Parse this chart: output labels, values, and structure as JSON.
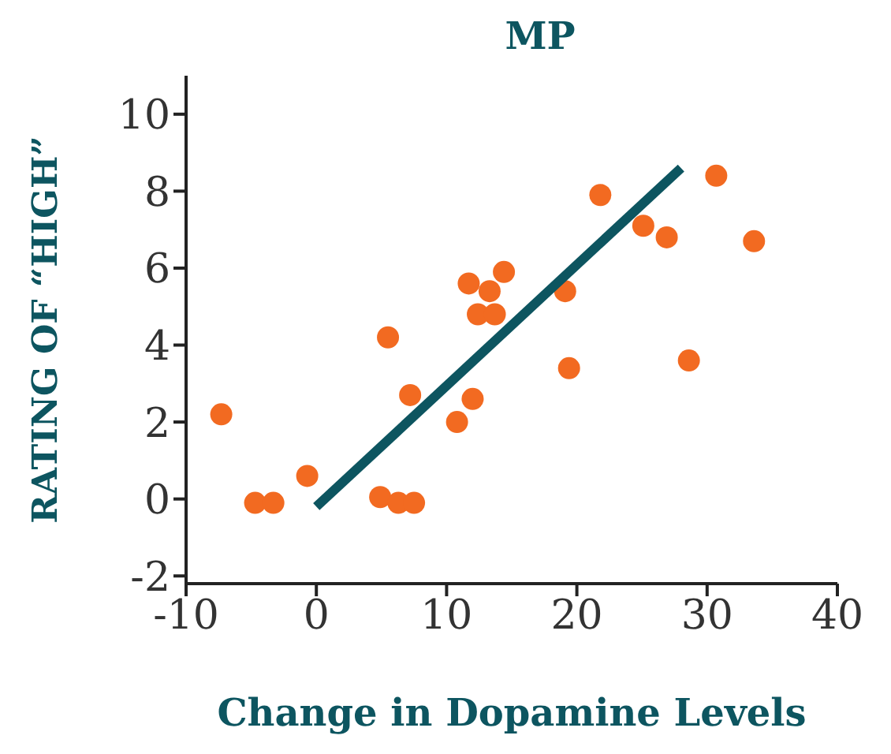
{
  "chart_data": {
    "type": "scatter",
    "title": "MP",
    "xlabel": "Change in Dopamine Levels",
    "ylabel": "RATING OF “HIGH”",
    "xlim": [
      -10,
      40
    ],
    "xticks": [
      -10,
      0,
      10,
      20,
      30,
      40
    ],
    "ylim": [
      -2.2,
      11
    ],
    "yticks": [
      -2,
      0,
      2,
      4,
      6,
      8,
      10
    ],
    "grid": false,
    "legend": false,
    "series": [
      {
        "type": "scatter",
        "color": "#f26a21",
        "marker": "circle",
        "x": [
          -7.3,
          -4.7,
          -3.3,
          -0.7,
          4.9,
          5.5,
          6.3,
          7.5,
          7.2,
          10.8,
          12.0,
          11.7,
          12.4,
          13.3,
          13.7,
          14.4,
          19.1,
          19.4,
          21.8,
          25.1,
          26.9,
          28.6,
          30.7,
          33.6
        ],
        "values": [
          2.2,
          -0.1,
          -0.1,
          0.6,
          0.05,
          4.2,
          -0.1,
          -0.1,
          2.7,
          2.0,
          2.6,
          5.6,
          4.8,
          5.4,
          4.8,
          5.9,
          5.4,
          3.4,
          7.9,
          7.1,
          6.8,
          3.6,
          8.4,
          6.7
        ]
      },
      {
        "type": "line",
        "color": "#0d5560",
        "marker": "none",
        "line_style": "solid",
        "x": [
          0,
          28
        ],
        "values": [
          -0.2,
          8.6
        ]
      }
    ]
  }
}
